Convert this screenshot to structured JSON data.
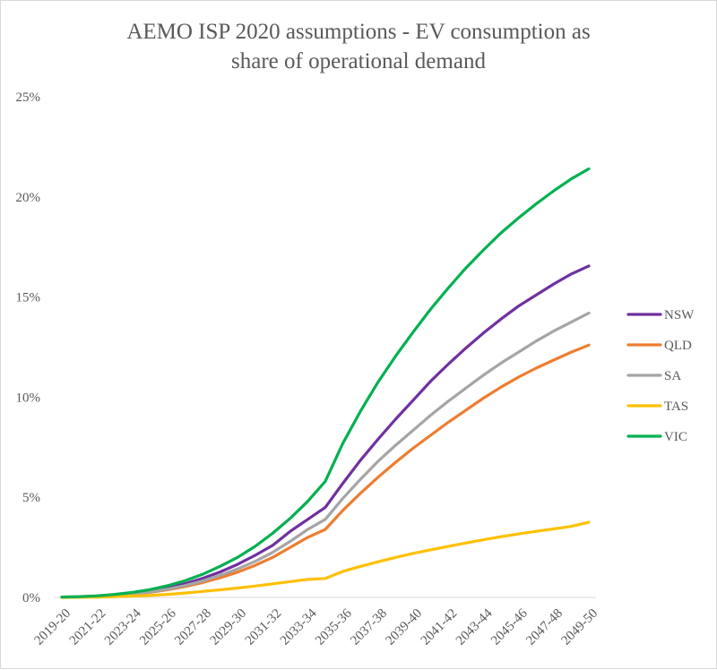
{
  "chart_data": {
    "type": "line",
    "title_line1": "AEMO ISP 2020 assumptions - EV consumption as",
    "title_line2": "share of operational demand",
    "x": [
      "2019-20",
      "2020-21",
      "2021-22",
      "2022-23",
      "2023-24",
      "2024-25",
      "2025-26",
      "2026-27",
      "2027-28",
      "2028-29",
      "2029-30",
      "2030-31",
      "2031-32",
      "2032-33",
      "2033-34",
      "2034-35",
      "2035-36",
      "2036-37",
      "2037-38",
      "2038-39",
      "2039-40",
      "2040-41",
      "2041-42",
      "2042-43",
      "2043-44",
      "2044-45",
      "2045-46",
      "2046-47",
      "2047-48",
      "2048-49",
      "2049-50"
    ],
    "x_tick_labels": [
      "2019-20",
      "2021-22",
      "2023-24",
      "2025-26",
      "2027-28",
      "2029-30",
      "2031-32",
      "2033-34",
      "2035-36",
      "2037-38",
      "2039-40",
      "2041-42",
      "2043-44",
      "2045-46",
      "2047-48",
      "2049-50"
    ],
    "ylim": [
      0,
      25
    ],
    "y_ticks": [
      0,
      5,
      10,
      15,
      20,
      25
    ],
    "y_tick_labels": [
      "0%",
      "5%",
      "10%",
      "15%",
      "20%",
      "25%"
    ],
    "grid": false,
    "legend_position": "right",
    "series": [
      {
        "name": "NSW",
        "color": "#7030A0",
        "values": [
          0.02,
          0.03,
          0.06,
          0.12,
          0.2,
          0.32,
          0.48,
          0.68,
          0.95,
          1.27,
          1.65,
          2.1,
          2.6,
          3.3,
          3.9,
          4.5,
          5.7,
          6.85,
          7.9,
          8.9,
          9.85,
          10.8,
          11.65,
          12.45,
          13.2,
          13.9,
          14.55,
          15.1,
          15.65,
          16.15,
          16.55
        ]
      },
      {
        "name": "QLD",
        "color": "#ED7D31",
        "values": [
          0.02,
          0.03,
          0.05,
          0.1,
          0.16,
          0.25,
          0.38,
          0.54,
          0.74,
          0.98,
          1.26,
          1.6,
          2.0,
          2.5,
          3.0,
          3.4,
          4.35,
          5.2,
          6.0,
          6.75,
          7.45,
          8.1,
          8.75,
          9.35,
          9.95,
          10.5,
          11.0,
          11.45,
          11.85,
          12.25,
          12.6
        ]
      },
      {
        "name": "SA",
        "color": "#A5A5A5",
        "values": [
          0.02,
          0.03,
          0.05,
          0.1,
          0.17,
          0.27,
          0.41,
          0.59,
          0.82,
          1.1,
          1.42,
          1.8,
          2.25,
          2.8,
          3.4,
          3.9,
          4.95,
          5.9,
          6.8,
          7.6,
          8.35,
          9.1,
          9.8,
          10.45,
          11.1,
          11.7,
          12.25,
          12.8,
          13.3,
          13.75,
          14.2
        ]
      },
      {
        "name": "TAS",
        "color": "#FFC000",
        "values": [
          0.0,
          0.01,
          0.02,
          0.04,
          0.07,
          0.1,
          0.15,
          0.22,
          0.3,
          0.38,
          0.47,
          0.57,
          0.68,
          0.79,
          0.9,
          0.95,
          1.3,
          1.55,
          1.78,
          2.0,
          2.2,
          2.38,
          2.55,
          2.72,
          2.88,
          3.03,
          3.17,
          3.3,
          3.42,
          3.55,
          3.75
        ]
      },
      {
        "name": "VIC",
        "color": "#00B050",
        "values": [
          0.02,
          0.04,
          0.08,
          0.15,
          0.25,
          0.39,
          0.58,
          0.83,
          1.15,
          1.55,
          2.0,
          2.55,
          3.2,
          3.95,
          4.8,
          5.8,
          7.7,
          9.3,
          10.75,
          12.05,
          13.25,
          14.4,
          15.45,
          16.45,
          17.35,
          18.2,
          18.95,
          19.65,
          20.3,
          20.9,
          21.4
        ]
      }
    ]
  }
}
